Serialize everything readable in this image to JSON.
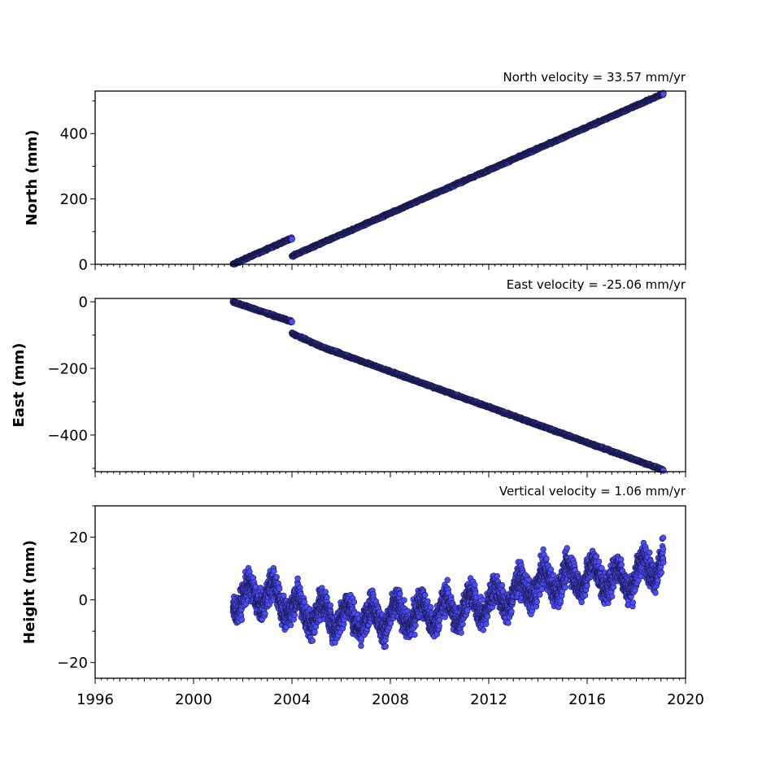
{
  "chart_data": [
    {
      "type": "scatter",
      "title": "North velocity = 33.57 mm/yr",
      "ylabel": "North (mm)",
      "xlim": [
        1996,
        2020
      ],
      "ylim": [
        0,
        530
      ],
      "yticks": [
        0,
        200,
        400
      ],
      "ytick_labels": [
        "0",
        "200",
        "400"
      ],
      "marker_color": "#4c4cff",
      "marker_edge": "#1a1a4d",
      "segments": [
        {
          "x0": 2001.6,
          "x1": 2004.0,
          "y0": 0,
          "y1": 80,
          "noise": 2
        },
        {
          "x0": 2004.0,
          "x1": 2019.1,
          "y0": 25,
          "y1": 522,
          "noise": 2
        }
      ]
    },
    {
      "type": "scatter",
      "title": "East velocity = -25.06 mm/yr",
      "ylabel": "East (mm)",
      "xlim": [
        1996,
        2020
      ],
      "ylim": [
        -510,
        10
      ],
      "yticks": [
        0,
        -200,
        -400
      ],
      "ytick_labels": [
        "0",
        "−200",
        "−400"
      ],
      "marker_color": "#4c4cff",
      "marker_edge": "#1a1a4d",
      "segments": [
        {
          "x0": 2001.6,
          "x1": 2004.0,
          "y0": 0,
          "y1": -60,
          "noise": 2
        },
        {
          "x0": 2004.0,
          "x1": 2005.2,
          "y0": -95,
          "y1": -135,
          "noise": 2
        },
        {
          "x0": 2005.2,
          "x1": 2019.1,
          "y0": -135,
          "y1": -505,
          "noise": 2
        }
      ]
    },
    {
      "type": "scatter",
      "title": "Vertical velocity = 1.06 mm/yr",
      "ylabel": "Height (mm)",
      "xlim": [
        1996,
        2020
      ],
      "ylim": [
        -25,
        30
      ],
      "yticks": [
        -20,
        0,
        20
      ],
      "ytick_labels": [
        "−20",
        "0",
        "20"
      ],
      "xticks": [
        1996,
        2000,
        2004,
        2008,
        2012,
        2016,
        2020
      ],
      "xtick_labels": [
        "1996",
        "2000",
        "2004",
        "2008",
        "2012",
        "2016",
        "2020"
      ],
      "marker_color": "#4c4cff",
      "marker_edge": "#1a1a4d",
      "trend": [
        {
          "x": 2001.6,
          "y": 0
        },
        {
          "x": 2003.0,
          "y": 2
        },
        {
          "x": 2004.5,
          "y": -4
        },
        {
          "x": 2007.0,
          "y": -6
        },
        {
          "x": 2010.0,
          "y": -4
        },
        {
          "x": 2012.0,
          "y": -1
        },
        {
          "x": 2014.0,
          "y": 5
        },
        {
          "x": 2016.0,
          "y": 8
        },
        {
          "x": 2017.5,
          "y": 6
        },
        {
          "x": 2019.1,
          "y": 13
        }
      ],
      "noise": 6
    }
  ]
}
